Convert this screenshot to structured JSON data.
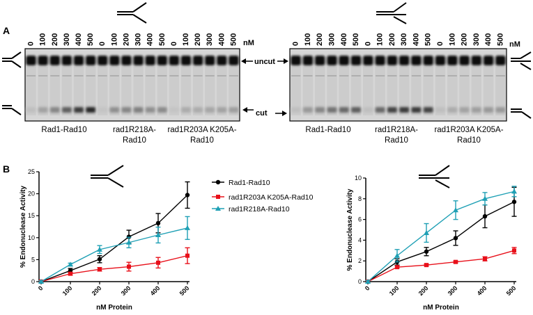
{
  "figure": {
    "panel_a_label": "A",
    "panel_b_label": "B",
    "unit_label": "nM",
    "band_uncut": "uncut",
    "band_cut": "cut",
    "substrate_left": "splayed-arm",
    "substrate_right": "3-flap",
    "lanes_left": [
      "0",
      "100",
      "200",
      "300",
      "400",
      "500",
      "0",
      "100",
      "200",
      "300",
      "400",
      "500",
      "0",
      "100",
      "200",
      "300",
      "400",
      "500"
    ],
    "lanes_right": [
      "0",
      "100",
      "200",
      "300",
      "400",
      "500",
      "0",
      "100",
      "200",
      "300",
      "400",
      "500",
      "0",
      "100",
      "200",
      "300",
      "400",
      "500"
    ],
    "gel_group_labels": [
      {
        "line1": "Rad1-Rad10",
        "line2": ""
      },
      {
        "line1": "rad1R218A-",
        "line2": "Rad10"
      },
      {
        "line1": "rad1R203A K205A-",
        "line2": "Rad10"
      }
    ],
    "cut_intensity_left": [
      0.05,
      0.2,
      0.35,
      0.55,
      0.75,
      0.85,
      0.02,
      0.3,
      0.35,
      0.38,
      0.3,
      0.32,
      0.02,
      0.15,
      0.15,
      0.18,
      0.2,
      0.22
    ],
    "cut_intensity_right": [
      0.05,
      0.25,
      0.35,
      0.45,
      0.5,
      0.55,
      0.05,
      0.5,
      0.7,
      0.75,
      0.75,
      0.7,
      0.05,
      0.15,
      0.2,
      0.22,
      0.25,
      0.25
    ],
    "colors": {
      "rad1": "#000000",
      "r203a": "#e8101a",
      "r218a": "#1fa0b5"
    }
  },
  "chart_data": [
    {
      "type": "line",
      "substrate": "splayed-arm",
      "ylabel": "% Endonuclease Activity",
      "xlabel": "nM Protein",
      "x": [
        0,
        100,
        200,
        300,
        400,
        500
      ],
      "ylim": [
        0,
        25
      ],
      "yticks": [
        "0",
        "5",
        "10",
        "15",
        "20",
        "25"
      ],
      "series": [
        {
          "name": "Rad1-Rad10",
          "color": "#000000",
          "marker": "circle",
          "values": [
            0,
            2.5,
            5.1,
            10.2,
            13.3,
            19.7
          ],
          "errors": [
            0.3,
            0.5,
            0.8,
            1.5,
            2.2,
            3.0
          ]
        },
        {
          "name": "rad1R203A K205A-Rad10",
          "color": "#e8101a",
          "marker": "square",
          "values": [
            0,
            1.8,
            2.8,
            3.4,
            4.3,
            5.9
          ],
          "errors": [
            0.2,
            0.3,
            0.4,
            1.0,
            1.2,
            1.8
          ]
        },
        {
          "name": "rad1R218A-Rad10",
          "color": "#1fa0b5",
          "marker": "triangle",
          "values": [
            0,
            3.9,
            7.3,
            8.9,
            10.6,
            12.2
          ],
          "errors": [
            0.2,
            0.3,
            0.9,
            1.2,
            1.8,
            2.6
          ]
        }
      ],
      "legend": [
        "Rad1-Rad10",
        "rad1R203A K205A-Rad10",
        "rad1R218A-Rad10"
      ]
    },
    {
      "type": "line",
      "substrate": "3-flap",
      "ylabel": "% Endonuclease Activity",
      "xlabel": "nM Protein",
      "x": [
        0,
        100,
        200,
        300,
        400,
        500
      ],
      "ylim": [
        0,
        10
      ],
      "yticks": [
        "0",
        "2",
        "4",
        "6",
        "8",
        "10"
      ],
      "series": [
        {
          "name": "Rad1-Rad10",
          "color": "#000000",
          "marker": "circle",
          "values": [
            0,
            1.9,
            2.9,
            4.2,
            6.3,
            7.7
          ],
          "errors": [
            0.1,
            0.3,
            0.4,
            0.7,
            1.1,
            1.4
          ]
        },
        {
          "name": "rad1R203A K205A-Rad10",
          "color": "#e8101a",
          "marker": "square",
          "values": [
            0,
            1.4,
            1.6,
            1.9,
            2.2,
            3.0
          ],
          "errors": [
            0.1,
            0.1,
            0.1,
            0.1,
            0.2,
            0.3
          ]
        },
        {
          "name": "rad1R218A-Rad10",
          "color": "#1fa0b5",
          "marker": "triangle",
          "values": [
            0,
            2.5,
            4.7,
            6.9,
            8.0,
            8.7
          ],
          "errors": [
            0.1,
            0.6,
            0.9,
            0.9,
            0.6,
            0.5
          ]
        }
      ]
    }
  ]
}
